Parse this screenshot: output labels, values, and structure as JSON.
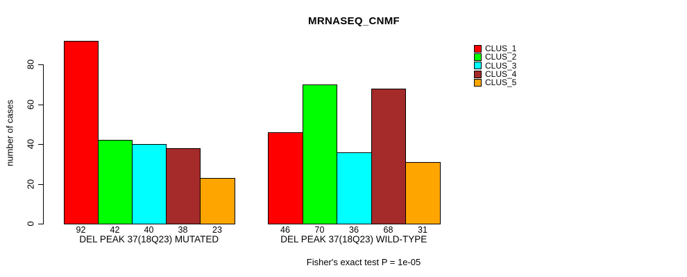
{
  "chart_data": {
    "type": "bar",
    "title": "MRNASEQ_CNMF",
    "ylabel": "number of cases",
    "xlabel": "",
    "ylim": [
      0,
      80
    ],
    "yticks": [
      0,
      20,
      40,
      60,
      80
    ],
    "grid": false,
    "legend_position": "right-outside",
    "bar_value_labels_shown": true,
    "series_names": [
      "CLUS_1",
      "CLUS_2",
      "CLUS_3",
      "CLUS_4",
      "CLUS_5"
    ],
    "colors": [
      "#FF0000",
      "#00FF00",
      "#00FFFF",
      "#A52A2A",
      "#FFA500"
    ],
    "groups": [
      {
        "label": "DEL PEAK 37(18Q23) MUTATED",
        "values": [
          92,
          42,
          40,
          38,
          23
        ]
      },
      {
        "label": "DEL PEAK 37(18Q23) WILD-TYPE",
        "values": [
          46,
          70,
          36,
          68,
          31
        ]
      }
    ],
    "annotation": "Fisher's exact test P = 1e-05"
  },
  "colors": {
    "foreground": "#000000",
    "background": "#ffffff"
  }
}
